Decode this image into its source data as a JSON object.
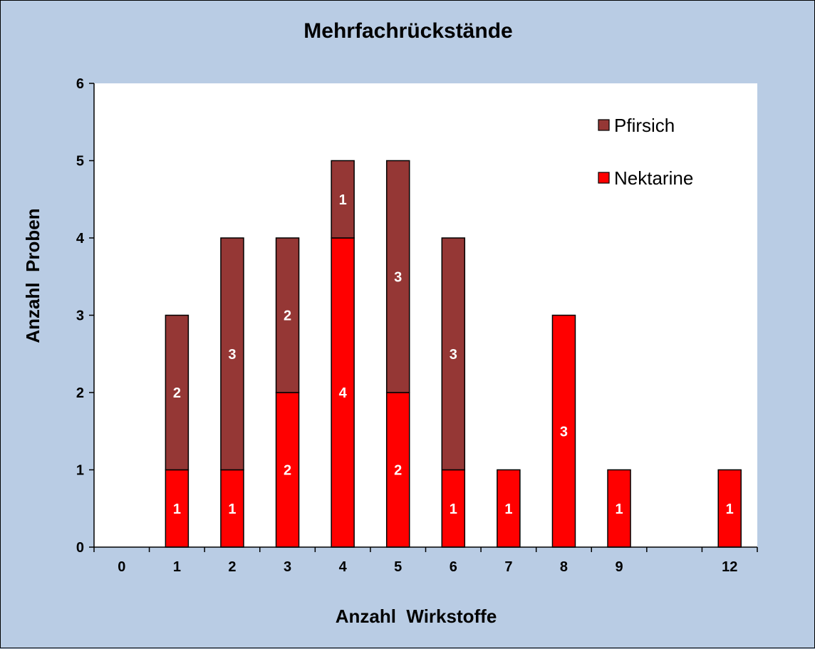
{
  "chart_data": {
    "type": "bar",
    "stacked": true,
    "title": "Mehrfachrückstände",
    "xlabel": "Anzahl  Wirkstoffe",
    "ylabel": "Anzahl  Proben",
    "categories": [
      "0",
      "1",
      "2",
      "3",
      "4",
      "5",
      "6",
      "7",
      "8",
      "9",
      "",
      "12"
    ],
    "ylim": [
      0,
      6
    ],
    "yticks": [
      0,
      1,
      2,
      3,
      4,
      5,
      6
    ],
    "grid": false,
    "legend_position": "top-right",
    "series": [
      {
        "name": "Nektarine",
        "color": "#ff0000",
        "values": [
          0,
          1,
          1,
          2,
          4,
          2,
          1,
          1,
          3,
          1,
          0,
          1
        ]
      },
      {
        "name": "Pfirsich",
        "color": "#953735",
        "values": [
          0,
          2,
          3,
          2,
          1,
          3,
          3,
          0,
          0,
          0,
          0,
          0
        ]
      }
    ],
    "legend_order": [
      "Pfirsich",
      "Nektarine"
    ],
    "plot_background": "#ffffff",
    "outer_background": "#b9cce4"
  }
}
